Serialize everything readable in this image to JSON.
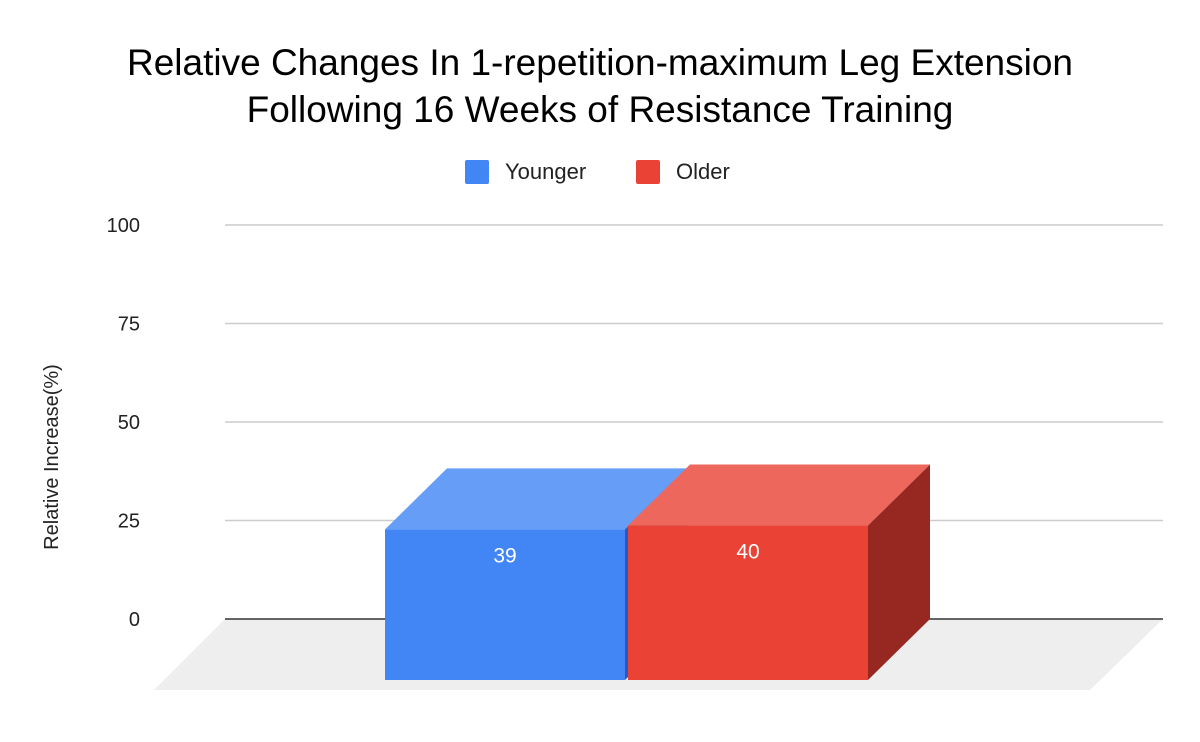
{
  "chart_data": {
    "type": "bar",
    "title_lines": [
      "Relative Changes In 1-repetition-maximum Leg Extension",
      "Following 16 Weeks of Resistance Training"
    ],
    "ylabel": "Relative Increase(%)",
    "xlabel": "",
    "ylim": [
      0,
      100
    ],
    "yticks": [
      "0",
      "25",
      "50",
      "75",
      "100"
    ],
    "series": [
      {
        "name": "Younger",
        "value": 39,
        "label": "39",
        "color": "#4285f4",
        "top_color": "#669df6",
        "side_color": "#2a56c6"
      },
      {
        "name": "Older",
        "value": 40,
        "label": "40",
        "color": "#ea4335",
        "top_color": "#ee675c",
        "side_color": "#962821"
      }
    ],
    "grid": true,
    "legend_position": "top-center",
    "style": "3d"
  }
}
